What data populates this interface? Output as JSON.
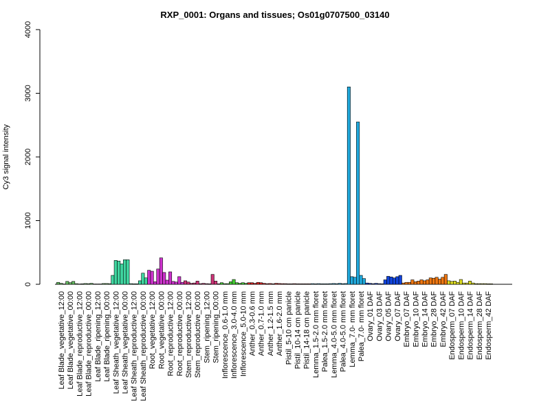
{
  "chart_data": {
    "type": "bar",
    "title": "RXP_0001: Organs and tissues; Os01g0707500_03140",
    "xlabel": "",
    "ylabel": "Cy3 signal intensity",
    "ylim": [
      0,
      4000
    ],
    "yticks": [
      0,
      1000,
      2000,
      3000,
      4000
    ],
    "grid": false,
    "categories": [
      "Leaf Blade_vegetative_12:00",
      "Leaf Blade_vegetative_00:00",
      "Leaf Blade_reproductive_12:00",
      "Leaf Blade_reproductive_00:00",
      "Leaf Blade_ripening_12:00",
      "Leaf Blade_ripening_00:00",
      "Leaf Sheath_vegetative_12:00",
      "Leaf Sheath_vegetative_00:00",
      "Leaf Sheath_reproductive_12:00",
      "Leaf Sheath_reproductive_00:00",
      "Root_vegetative_12:00",
      "Root_vegetative_00:00",
      "Root_reproductive_12:00",
      "Root_reproductive_00:00",
      "Stem_reproductive_12:00",
      "Stem_reproductive_00:00",
      "Stem_ripening_12:00",
      "Stem_ripening_00:00",
      "Inflorescence_0.6-1.0 mm",
      "Inflorescence_3.0-4.0 mm",
      "Inflorescence_5.0-10 mm",
      "Anther_0.3-0.6 mm",
      "Anther_0.7-1.0 mm",
      "Anther_1.2-1.5 mm",
      "Anther_1.6-2.0 mm",
      "Pistil_5-10 cm panicle",
      "Pistil_10-14 cm panicle",
      "Pistil_14-18 cm panicle",
      "Lemma_1.5-2.0 mm floret",
      "Palea_1.5-2.0 mm floret",
      "Lemma_4.0-5.0 mm floret",
      "Palea_4.0-5.0 mm floret",
      "Lemma_7.0- mm floret",
      "Palea_7.0- mm floret",
      "Ovary_01 DAF",
      "Ovary_03 DAF",
      "Ovary_05 DAF",
      "Ovary_07 DAF",
      "Embryo_07 DAF",
      "Embryo_10 DAF",
      "Embryo_14 DAF",
      "Embryo_28 DAF",
      "Embryo_42 DAF",
      "Endosperm_07 DAF",
      "Endosperm_10 DAF",
      "Endosperm_14 DAF",
      "Endosperm_28 DAF",
      "Endosperm_42 DAF"
    ],
    "labeled_categories": [
      "Leaf Blade_vegetative_12:00",
      "Leaf Blade_vegetative_00:00",
      "Leaf Blade_reproductive_12:00",
      "Leaf Blade_reproductive_00:00",
      "Leaf Blade_ripening_12:00",
      "Leaf Blade_ripening_00:00",
      "Leaf Sheath_vegetative_12:00",
      "Leaf Sheath_vegetative_00:00",
      "Leaf Sheath_reproductive_12:00",
      "Leaf Sheath_reproductive_00:00",
      "Root_vegetative_12:00",
      "Root_vegetative_00:00",
      "Root_reproductive_12:00",
      "Root_reproductive_00:00",
      "Stem_reproductive_12:00",
      "Stem_reproductive_00:00",
      "Stem_ripening_12:00",
      "Stem_ripening_00:00",
      "Inflorescence_0.6-1.0 mm",
      "Inflorescence_3.0-4.0 mm",
      "Inflorescence_5.0-10 mm",
      "Anther_0.3-0.6 mm",
      "Anther_0.7-1.0 mm",
      "Anther_1.2-1.5 mm",
      "Anther_1.6-2.0 mm",
      "Pistil_5-10 cm panicle",
      "Pistil_10-14 cm panicle",
      "Pistil_14-18 cm panicle",
      "Lemma_1.5-2.0 mm floret",
      "Palea_1.5-2.0 mm floret",
      "Lemma_4.0-5.0 mm floret",
      "Palea_4.0-5.0 mm floret",
      "Lemma_7.0- mm floret",
      "Palea_7.0- mm floret",
      "Ovary_01 DAF",
      "Ovary_03 DAF",
      "Ovary_05 DAF",
      "Ovary_07 DAF",
      "Embryo_07 DAF",
      "Embryo_10 DAF",
      "Embryo_14 DAF",
      "Embryo_28 DAF",
      "Embryo_42 DAF",
      "Endosperm_07 DAF",
      "Endosperm_10 DAF",
      "Endosperm_14 DAF",
      "Endosperm_28 DAF",
      "Endosperm_42 DAF"
    ],
    "colors": [
      "#66bd63",
      "#66bd63",
      "#66bd63",
      "#66bd63",
      "#66bd63",
      "#66bd63",
      "#3fd6a0",
      "#3fd6a0",
      "#3fd6a0",
      "#3fd6a0",
      "#cc33cc",
      "#cc33cc",
      "#cc33cc",
      "#cc33cc",
      "#cc3377",
      "#cc3377",
      "#cc3377",
      "#cc3377",
      "#44cc33",
      "#44cc33",
      "#44cc33",
      "#dd2222",
      "#dd2222",
      "#dd2222",
      "#dd2222",
      "#aa3333",
      "#aa3333",
      "#aa3333",
      "#22aadd",
      "#22aadd",
      "#22aadd",
      "#22aadd",
      "#22aadd",
      "#22aadd",
      "#1144dd",
      "#1144dd",
      "#1144dd",
      "#1144dd",
      "#ee7711",
      "#ee7711",
      "#ee7711",
      "#ee7711",
      "#ee7711",
      "#dddd22",
      "#dddd22",
      "#dddd22",
      "#dddd22",
      "#dddd22"
    ],
    "replicate_values": [
      [
        30,
        15,
        5
      ],
      [
        45,
        25,
        45
      ],
      [
        10,
        5,
        8
      ],
      [
        12,
        10,
        15
      ],
      [
        5,
        5,
        5
      ],
      [
        12,
        12,
        10
      ],
      [
        140,
        375,
        365
      ],
      [
        320,
        385,
        385
      ],
      [
        10,
        8,
        8
      ],
      [
        55,
        175,
        100
      ],
      [
        220,
        205,
        40
      ],
      [
        240,
        415,
        185
      ],
      [
        65,
        195,
        45
      ],
      [
        35,
        120,
        30
      ],
      [
        55,
        35,
        15
      ],
      [
        20,
        50,
        10
      ],
      [
        15,
        10,
        8
      ],
      [
        155,
        50,
        8
      ],
      [
        25,
        10,
        10
      ],
      [
        40,
        75,
        25
      ],
      [
        15,
        25,
        15
      ],
      [
        25,
        25,
        15
      ],
      [
        30,
        25,
        15
      ],
      [
        10,
        12,
        8
      ],
      [
        15,
        12,
        10
      ],
      [
        10,
        8,
        8
      ],
      [
        10,
        8,
        8
      ],
      [
        8,
        8,
        8
      ],
      [
        10,
        8,
        10
      ],
      [
        8,
        8,
        8
      ],
      [
        10,
        12,
        10
      ],
      [
        15,
        10,
        12
      ],
      [
        3100,
        120,
        110
      ],
      [
        2550,
        140,
        90
      ],
      [
        20,
        15,
        10
      ],
      [
        15,
        10,
        8
      ],
      [
        70,
        125,
        115
      ],
      [
        100,
        120,
        140
      ],
      [
        20,
        30,
        30
      ],
      [
        70,
        40,
        50
      ],
      [
        70,
        55,
        70
      ],
      [
        100,
        95,
        110
      ],
      [
        80,
        110,
        155
      ],
      [
        55,
        45,
        50
      ],
      [
        30,
        75,
        20
      ],
      [
        20,
        50,
        20
      ],
      [
        10,
        10,
        10
      ],
      [
        10,
        8,
        8
      ]
    ]
  }
}
